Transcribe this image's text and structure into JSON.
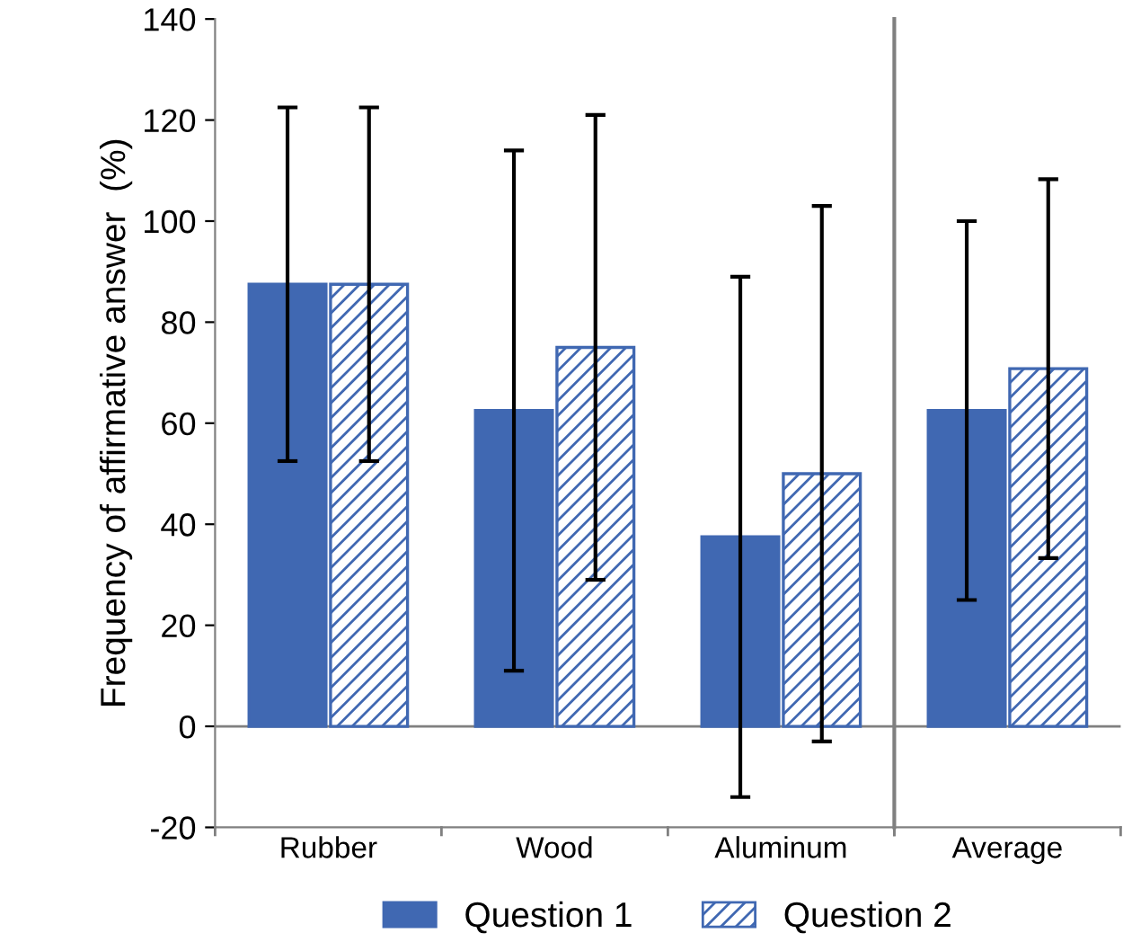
{
  "chart_data": [
    {
      "type": "bar",
      "ylabel": "Frequency of affirmative answer  (%)",
      "categories": [
        "Rubber",
        "Wood",
        "Aluminum"
      ],
      "series": [
        {
          "name": "Question 1",
          "color": "#4068b2",
          "values": [
            87.5,
            62.5,
            37.5
          ],
          "errors": [
            35,
            51.5,
            51.5
          ]
        },
        {
          "name": "Question 2",
          "color": "#4068b2",
          "values": [
            87.5,
            75,
            50
          ],
          "errors": [
            35,
            46,
            53
          ]
        }
      ],
      "ylim": [
        -20,
        140
      ],
      "yticks": [
        -20,
        0,
        20,
        40,
        60,
        80,
        100,
        120,
        140
      ],
      "legend": "bottom"
    },
    {
      "type": "bar",
      "categories": [
        "Average"
      ],
      "series": [
        {
          "color": "#4068b2",
          "values": [
            62.5
          ],
          "errors": [
            37.5
          ]
        },
        {
          "color": "#4068b2",
          "values": [
            70.8
          ],
          "errors": [
            37.5
          ]
        }
      ],
      "ylim": [
        -20,
        140
      ],
      "yticks": [
        -20,
        0,
        20,
        40,
        60,
        80,
        100,
        120,
        140
      ],
      "tick_labels": "x"
    }
  ]
}
